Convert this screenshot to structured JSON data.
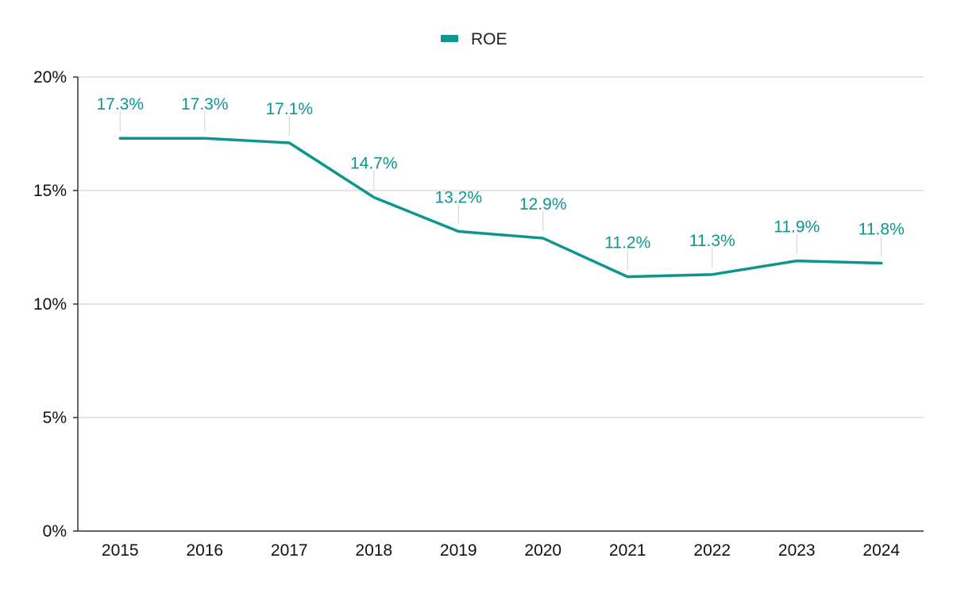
{
  "chart_data": {
    "type": "line",
    "title": "",
    "xlabel": "",
    "ylabel": "",
    "categories": [
      "2015",
      "2016",
      "2017",
      "2018",
      "2019",
      "2020",
      "2021",
      "2022",
      "2023",
      "2024"
    ],
    "series": [
      {
        "name": "ROE",
        "color": "#0e958f",
        "values": [
          17.3,
          17.3,
          17.1,
          14.7,
          13.2,
          12.9,
          11.2,
          11.3,
          11.9,
          11.8
        ],
        "data_labels": [
          "17.3%",
          "17.3%",
          "17.1%",
          "14.7%",
          "13.2%",
          "12.9%",
          "11.2%",
          "11.3%",
          "11.9%",
          "11.8%"
        ]
      }
    ],
    "ylim": [
      0,
      20
    ],
    "y_ticks": [
      0,
      5,
      10,
      15,
      20
    ],
    "y_tick_labels": [
      "0%",
      "5%",
      "10%",
      "15%",
      "20%"
    ],
    "grid": true,
    "legend_position": "top-center"
  }
}
